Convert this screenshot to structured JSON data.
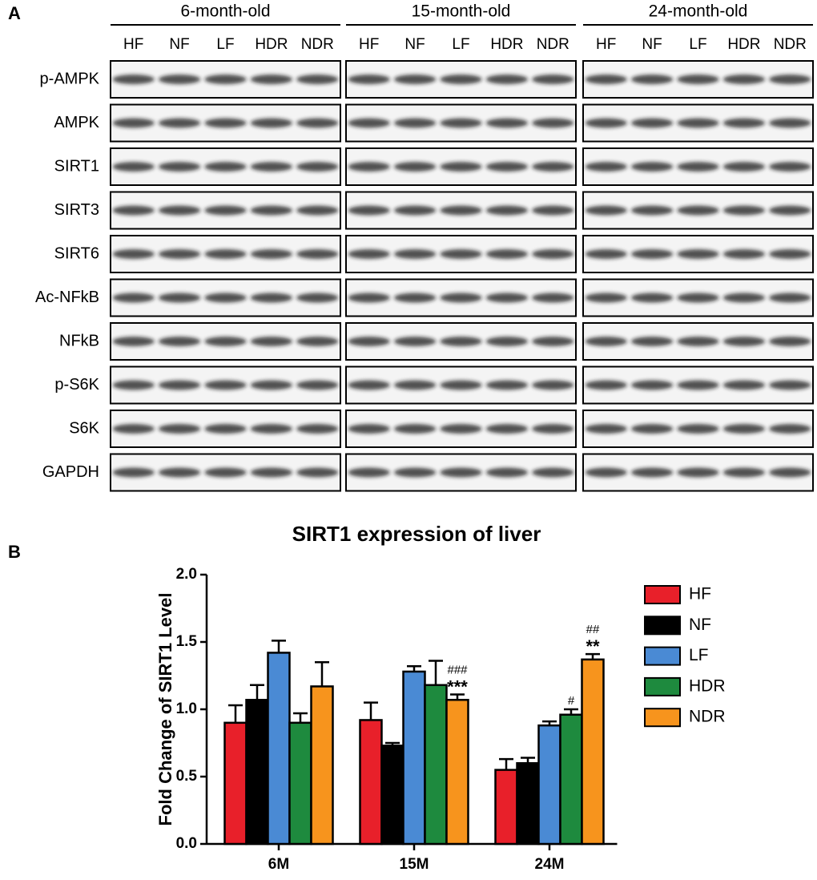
{
  "panel_a": {
    "label": "A",
    "groups": [
      "6-month-old",
      "15-month-old",
      "24-month-old"
    ],
    "lanes": [
      "HF",
      "NF",
      "LF",
      "HDR",
      "NDR"
    ],
    "proteins": [
      "p-AMPK",
      "AMPK",
      "SIRT1",
      "SIRT3",
      "SIRT6",
      "Ac-NFkB",
      "NFkB",
      "p-S6K",
      "S6K",
      "GAPDH"
    ]
  },
  "panel_b_label": "B",
  "chart_data": {
    "type": "bar",
    "title": "SIRT1 expression of liver",
    "y_label": "Fold Change of SIRT1 Level",
    "categories": [
      "6M",
      "15M",
      "24M"
    ],
    "ylim": [
      0,
      2.0
    ],
    "yticks": [
      {
        "value": 0,
        "label": "0.0"
      },
      0.5,
      {
        "value": 1,
        "label": "1.0"
      },
      1.5,
      {
        "value": 2,
        "label": "2.0"
      }
    ],
    "series": [
      {
        "name": "HF",
        "color": "#e8202a",
        "values": [
          0.9,
          0.92,
          0.55
        ],
        "errors": [
          0.13,
          0.13,
          0.08
        ],
        "sig_hash": [
          null,
          null,
          null
        ],
        "sig_star": [
          null,
          null,
          null
        ]
      },
      {
        "name": "NF",
        "color": "#000000",
        "values": [
          1.07,
          0.73,
          0.6
        ],
        "errors": [
          0.11,
          0.02,
          0.04
        ],
        "sig_hash": [
          null,
          null,
          null
        ],
        "sig_star": [
          null,
          null,
          null
        ]
      },
      {
        "name": "LF",
        "color": "#4a8ad4",
        "values": [
          1.42,
          1.28,
          0.88
        ],
        "errors": [
          0.09,
          0.04,
          0.03
        ],
        "sig_hash": [
          null,
          null,
          null
        ],
        "sig_star": [
          null,
          null,
          null
        ]
      },
      {
        "name": "HDR",
        "color": "#1e8a3e",
        "values": [
          0.9,
          1.18,
          0.96
        ],
        "errors": [
          0.07,
          0.18,
          0.04
        ],
        "sig_hash": [
          null,
          null,
          "#"
        ],
        "sig_star": [
          null,
          null,
          null
        ]
      },
      {
        "name": "NDR",
        "color": "#f7941d",
        "values": [
          1.17,
          1.07,
          1.37
        ],
        "errors": [
          0.18,
          0.04,
          0.04
        ],
        "sig_hash": [
          null,
          "###",
          "##"
        ],
        "sig_star": [
          null,
          "***",
          "**"
        ]
      }
    ]
  }
}
